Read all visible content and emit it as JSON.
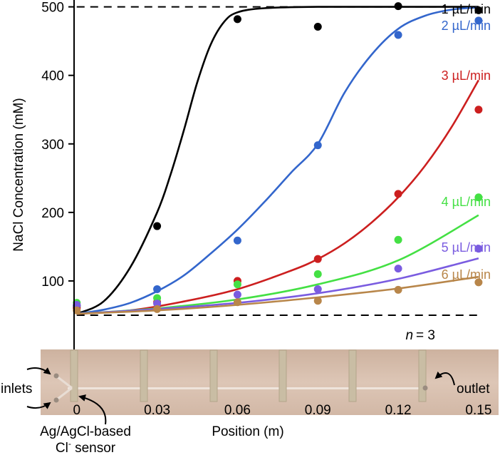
{
  "chart_data": {
    "type": "scatter",
    "title": "",
    "xlabel": "Position (m)",
    "ylabel": "NaCl Concentration (mM)",
    "xlim": [
      -0.001,
      0.158
    ],
    "ylim": [
      0,
      510
    ],
    "x_ticks": [
      "0",
      "0.03",
      "0.06",
      "0.09",
      "0.12",
      "0.15"
    ],
    "x_tick_values": [
      0,
      0.03,
      0.06,
      0.09,
      0.12,
      0.15
    ],
    "y_ticks": [
      "100",
      "200",
      "300",
      "400",
      "500"
    ],
    "y_tick_values": [
      100,
      200,
      300,
      400,
      500
    ],
    "reference_lines": [
      50,
      500
    ],
    "annotation_n": "n",
    "annotation_n_value": "= 3",
    "series": [
      {
        "name": "1 µL/min",
        "color": "#000000",
        "x": [
          0,
          0.03,
          0.06,
          0.09,
          0.12,
          0.15
        ],
        "y": [
          64,
          180,
          482,
          471,
          501,
          495
        ],
        "fit": [
          [
            0,
            52
          ],
          [
            0.01,
            70
          ],
          [
            0.02,
            120
          ],
          [
            0.03,
            200
          ],
          [
            0.035,
            255
          ],
          [
            0.04,
            320
          ],
          [
            0.045,
            390
          ],
          [
            0.05,
            445
          ],
          [
            0.055,
            478
          ],
          [
            0.06,
            492
          ],
          [
            0.07,
            498
          ],
          [
            0.09,
            500
          ],
          [
            0.12,
            500
          ],
          [
            0.15,
            500
          ]
        ]
      },
      {
        "name": "2 µL/min",
        "color": "#3366cc",
        "x": [
          0,
          0.03,
          0.06,
          0.09,
          0.12,
          0.15
        ],
        "y": [
          62,
          88,
          159,
          298,
          459,
          480
        ],
        "fit": [
          [
            0,
            52
          ],
          [
            0.01,
            58
          ],
          [
            0.02,
            68
          ],
          [
            0.03,
            85
          ],
          [
            0.04,
            108
          ],
          [
            0.05,
            140
          ],
          [
            0.06,
            175
          ],
          [
            0.07,
            215
          ],
          [
            0.08,
            258
          ],
          [
            0.09,
            300
          ],
          [
            0.1,
            375
          ],
          [
            0.11,
            430
          ],
          [
            0.12,
            468
          ],
          [
            0.13,
            487
          ],
          [
            0.14,
            496
          ],
          [
            0.15,
            499
          ]
        ]
      },
      {
        "name": "3 µL/min",
        "color": "#cc1f1f",
        "x": [
          0,
          0.03,
          0.06,
          0.09,
          0.12,
          0.15
        ],
        "y": [
          60,
          69,
          100,
          132,
          227,
          350
        ],
        "fit": [
          [
            0,
            52
          ],
          [
            0.02,
            57
          ],
          [
            0.04,
            70
          ],
          [
            0.06,
            88
          ],
          [
            0.08,
            115
          ],
          [
            0.09,
            132
          ],
          [
            0.1,
            155
          ],
          [
            0.11,
            185
          ],
          [
            0.12,
            222
          ],
          [
            0.13,
            268
          ],
          [
            0.14,
            325
          ],
          [
            0.15,
            393
          ]
        ]
      },
      {
        "name": "4 µL/min",
        "color": "#44e044",
        "x": [
          0,
          0.03,
          0.06,
          0.09,
          0.12,
          0.15
        ],
        "y": [
          68,
          75,
          95,
          110,
          160,
          222
        ],
        "fit": [
          [
            0,
            52
          ],
          [
            0.03,
            60
          ],
          [
            0.06,
            73
          ],
          [
            0.09,
            95
          ],
          [
            0.12,
            130
          ],
          [
            0.15,
            196
          ]
        ]
      },
      {
        "name": "5 µL/min",
        "color": "#7a5ce0",
        "x": [
          0,
          0.03,
          0.06,
          0.09,
          0.12,
          0.15
        ],
        "y": [
          65,
          67,
          80,
          88,
          118,
          147
        ],
        "fit": [
          [
            0,
            52
          ],
          [
            0.03,
            59
          ],
          [
            0.06,
            68
          ],
          [
            0.09,
            82
          ],
          [
            0.12,
            103
          ],
          [
            0.15,
            133
          ]
        ]
      },
      {
        "name": "6 µL/min",
        "color": "#b8864a",
        "x": [
          0,
          0.03,
          0.06,
          0.09,
          0.12,
          0.15
        ],
        "y": [
          57,
          59,
          69,
          71,
          87,
          98
        ],
        "fit": [
          [
            0,
            52
          ],
          [
            0.03,
            57
          ],
          [
            0.06,
            65
          ],
          [
            0.09,
            76
          ],
          [
            0.12,
            89
          ],
          [
            0.15,
            106
          ]
        ]
      }
    ]
  },
  "device_labels": {
    "inlets": "inlets",
    "outlet": "outlet",
    "sensor_line1": "Ag/AgCl-based",
    "sensor_line2_prefix": "Cl",
    "sensor_line2_sup": "-",
    "sensor_line2_suffix": " sensor"
  }
}
